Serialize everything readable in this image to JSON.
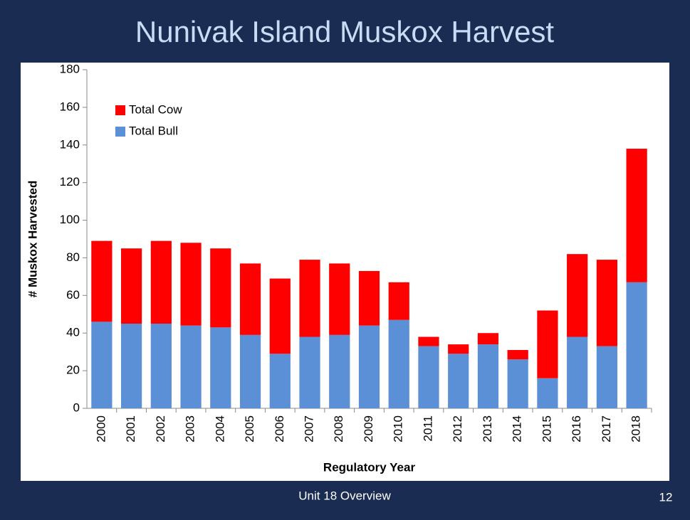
{
  "slide_title": "Nunivak Island Muskox Harvest",
  "footer": "Unit 18 Overview",
  "page_number": 12,
  "chart_data": {
    "type": "stacked_bar",
    "x_label": "Regulatory Year",
    "y_label": "# Muskox Harvested",
    "categories": [
      "2000",
      "2001",
      "2002",
      "2003",
      "2004",
      "2005",
      "2006",
      "2007",
      "2008",
      "2009",
      "2010",
      "2011",
      "2012",
      "2013",
      "2014",
      "2015",
      "2016",
      "2017",
      "2018"
    ],
    "series": [
      {
        "name": "Total Bull",
        "color": "#5b8fd6",
        "values": [
          46,
          45,
          45,
          44,
          43,
          39,
          29,
          38,
          39,
          44,
          47,
          33,
          29,
          34,
          26,
          16,
          38,
          33,
          67
        ]
      },
      {
        "name": "Total Cow",
        "color": "#ff0000",
        "values": [
          43,
          40,
          44,
          44,
          42,
          38,
          40,
          41,
          38,
          29,
          20,
          5,
          5,
          6,
          5,
          36,
          44,
          46,
          71
        ]
      }
    ],
    "ylim": [
      0,
      180
    ],
    "yticks": [
      0,
      20,
      40,
      60,
      80,
      100,
      120,
      140,
      160,
      180
    ],
    "legend": "upper left",
    "grid": false
  }
}
